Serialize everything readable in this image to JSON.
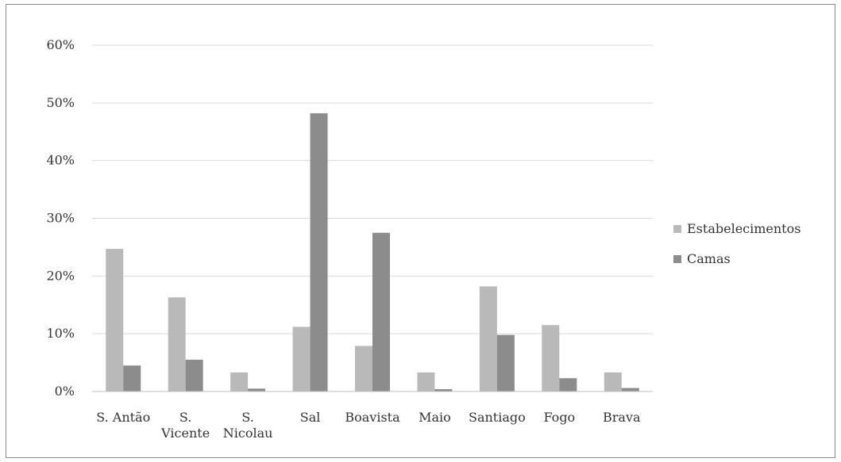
{
  "chart_data": {
    "type": "bar",
    "title": "",
    "xlabel": "",
    "ylabel": "",
    "categories": [
      [
        "S. Antão"
      ],
      [
        "S.",
        "Vicente"
      ],
      [
        "S.",
        "Nicolau"
      ],
      [
        "Sal"
      ],
      [
        "Boavista"
      ],
      [
        "Maio"
      ],
      [
        "Santiago"
      ],
      [
        "Fogo"
      ],
      [
        "Brava"
      ]
    ],
    "series": [
      {
        "name": "Estabelecimentos",
        "color": "#b9b9b9",
        "values": [
          24.7,
          16.3,
          3.3,
          11.2,
          7.9,
          3.3,
          18.2,
          11.5,
          3.3
        ]
      },
      {
        "name": "Camas",
        "color": "#8c8c8c",
        "values": [
          4.5,
          5.5,
          0.5,
          48.2,
          27.5,
          0.4,
          9.8,
          2.3,
          0.6
        ]
      }
    ],
    "ylim": [
      0,
      60
    ],
    "yticks": [
      "0%",
      "10%",
      "20%",
      "30%",
      "40%",
      "50%",
      "60%"
    ],
    "grid": true,
    "legend_position": "right"
  }
}
